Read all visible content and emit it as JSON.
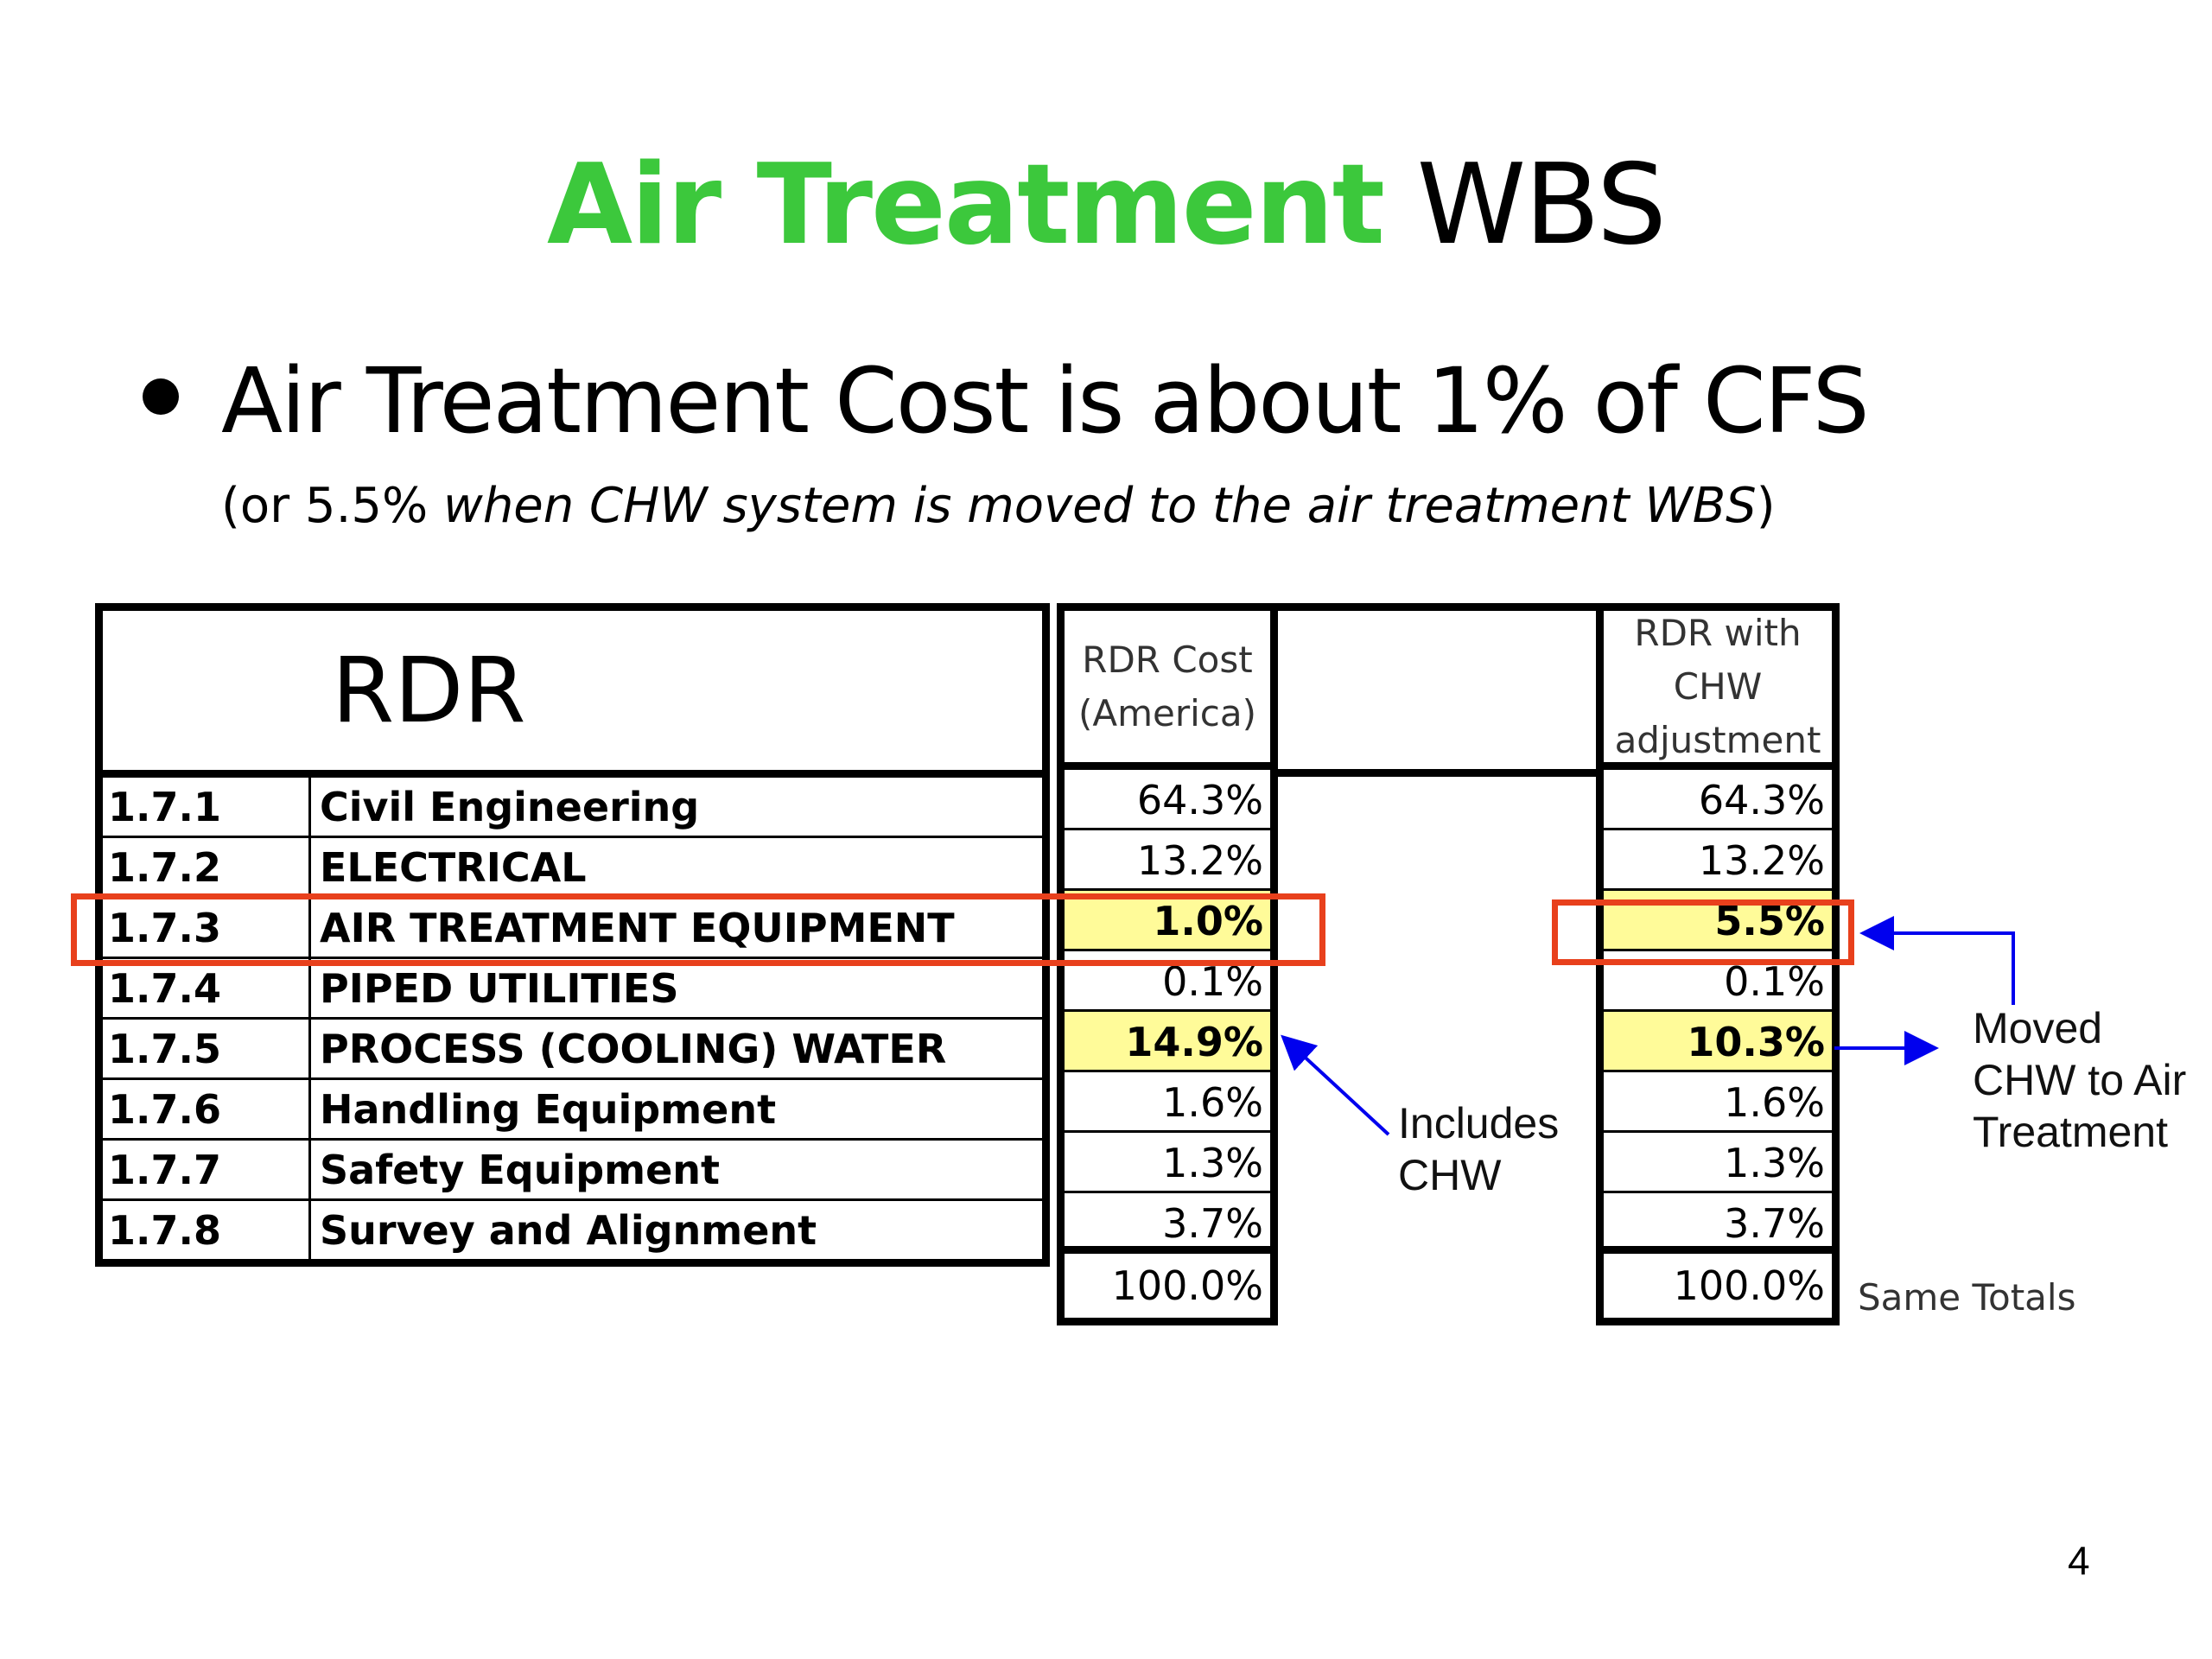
{
  "title": {
    "accent": "Air Treatment",
    "rest": "WBS"
  },
  "bullet": {
    "main": "Air Treatment Cost is about 1% of CFS",
    "sub_open": "(or 5.5% ",
    "sub_italic": "when CHW system is moved to the air treatment WBS",
    "sub_close": ")"
  },
  "table": {
    "header": "RDR",
    "rows": [
      {
        "code": "1.7.1",
        "desc": "Civil Engineering"
      },
      {
        "code": "1.7.2",
        "desc": "ELECTRICAL"
      },
      {
        "code": "1.7.3",
        "desc": "AIR TREATMENT EQUIPMENT"
      },
      {
        "code": "1.7.4",
        "desc": "PIPED UTILITIES"
      },
      {
        "code": "1.7.5",
        "desc": "PROCESS (COOLING) WATER"
      },
      {
        "code": "1.7.6",
        "desc": "Handling Equipment"
      },
      {
        "code": "1.7.7",
        "desc": "Safety Equipment"
      },
      {
        "code": "1.7.8",
        "desc": "Survey and Alignment"
      }
    ]
  },
  "rdr_cost": {
    "header": [
      "RDR Cost",
      "(America)"
    ],
    "values": [
      "64.3%",
      "13.2%",
      "1.0%",
      "0.1%",
      "14.9%",
      "1.6%",
      "1.3%",
      "3.7%"
    ],
    "total": "100.0%"
  },
  "rdr_chw": {
    "header": [
      "RDR with",
      "CHW",
      "adjustment"
    ],
    "values": [
      "64.3%",
      "13.2%",
      "5.5%",
      "0.1%",
      "10.3%",
      "1.6%",
      "1.3%",
      "3.7%"
    ],
    "total": "100.0%"
  },
  "annotations": {
    "includes": [
      "Includes",
      "CHW"
    ],
    "moved": [
      "Moved",
      "CHW to Air",
      "Treatment"
    ],
    "same_totals": "Same Totals"
  },
  "page_number": "4",
  "colors": {
    "accent_green": "#3cc83c",
    "highlight": "#fffb99",
    "red_box": "#e8401c",
    "arrow_blue": "#0000ee"
  }
}
